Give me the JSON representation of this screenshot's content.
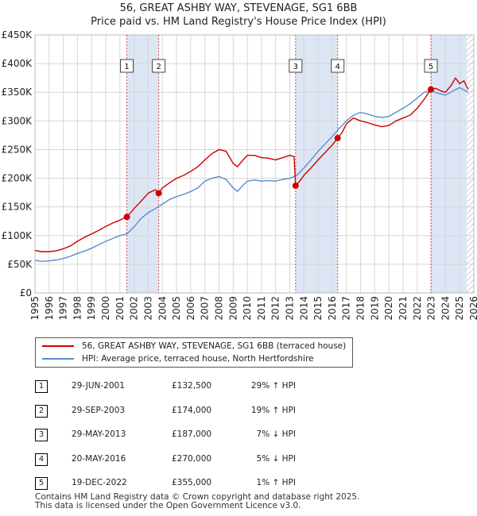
{
  "title_line1": "56, GREAT ASHBY WAY, STEVENAGE, SG1 6BB",
  "title_line2": "Price paid vs. HM Land Registry's House Price Index (HPI)",
  "colors": {
    "property": "#cc0000",
    "hpi": "#5b8ccc",
    "shade": "#dde6f5",
    "grid": "#d6d6d6",
    "marker_line": "#d44444"
  },
  "legend": {
    "property": "56, GREAT ASHBY WAY, STEVENAGE, SG1 6BB (terraced house)",
    "hpi": "HPI: Average price, terraced house, North Hertfordshire"
  },
  "transactions": [
    {
      "num": "1",
      "date": "29-JUN-2001",
      "price": "£132,500",
      "hpi": "29% ↑ HPI"
    },
    {
      "num": "2",
      "date": "29-SEP-2003",
      "price": "£174,000",
      "hpi": "19% ↑ HPI"
    },
    {
      "num": "3",
      "date": "29-MAY-2013",
      "price": "£187,000",
      "hpi": "7% ↓ HPI"
    },
    {
      "num": "4",
      "date": "20-MAY-2016",
      "price": "£270,000",
      "hpi": "5% ↓ HPI"
    },
    {
      "num": "5",
      "date": "19-DEC-2022",
      "price": "£355,000",
      "hpi": "1% ↑ HPI"
    }
  ],
  "footer_line1": "Contains HM Land Registry data © Crown copyright and database right 2025.",
  "footer_line2": "This data is licensed under the Open Government Licence v3.0.",
  "chart_data": {
    "type": "line",
    "title": "56, GREAT ASHBY WAY, STEVENAGE, SG1 6BB — Price paid vs. HM Land Registry's House Price Index (HPI)",
    "xlabel": "",
    "ylabel": "",
    "xlim": [
      1995,
      2026
    ],
    "ylim": [
      0,
      450000
    ],
    "x_ticks": [
      1995,
      1996,
      1997,
      1998,
      1999,
      2000,
      2001,
      2002,
      2003,
      2004,
      2005,
      2006,
      2007,
      2008,
      2009,
      2010,
      2011,
      2012,
      2013,
      2014,
      2015,
      2016,
      2017,
      2018,
      2019,
      2020,
      2021,
      2022,
      2023,
      2024,
      2025,
      2026
    ],
    "y_ticks": [
      {
        "value": 0,
        "label": "£0"
      },
      {
        "value": 50000,
        "label": "£50K"
      },
      {
        "value": 100000,
        "label": "£100K"
      },
      {
        "value": 150000,
        "label": "£150K"
      },
      {
        "value": 200000,
        "label": "£200K"
      },
      {
        "value": 250000,
        "label": "£250K"
      },
      {
        "value": 300000,
        "label": "£300K"
      },
      {
        "value": 350000,
        "label": "£350K"
      },
      {
        "value": 400000,
        "label": "£400K"
      },
      {
        "value": 450000,
        "label": "£450K"
      }
    ],
    "grid": true,
    "shaded_ranges": [
      [
        2001.49,
        2003.74
      ],
      [
        2013.41,
        2016.38
      ],
      [
        2022.97,
        2025.9
      ]
    ],
    "hatched_from": 2025.5,
    "sales": [
      {
        "label": "1",
        "x": 2001.49,
        "y": 132500
      },
      {
        "label": "2",
        "x": 2003.74,
        "y": 174000
      },
      {
        "label": "3",
        "x": 2013.41,
        "y": 187000
      },
      {
        "label": "4",
        "x": 2016.38,
        "y": 270000
      },
      {
        "label": "5",
        "x": 2022.97,
        "y": 355000
      }
    ],
    "series": [
      {
        "name": "56, GREAT ASHBY WAY, STEVENAGE, SG1 6BB (terraced house)",
        "points": [
          [
            1995.0,
            74000
          ],
          [
            1995.5,
            72000
          ],
          [
            1996.0,
            72000
          ],
          [
            1996.5,
            73500
          ],
          [
            1997.0,
            77000
          ],
          [
            1997.5,
            82000
          ],
          [
            1998.0,
            90000
          ],
          [
            1998.5,
            97000
          ],
          [
            1999.0,
            103000
          ],
          [
            1999.5,
            109000
          ],
          [
            2000.0,
            116000
          ],
          [
            2000.5,
            122000
          ],
          [
            2001.0,
            127000
          ],
          [
            2001.49,
            132500
          ],
          [
            2002.0,
            147000
          ],
          [
            2002.5,
            160000
          ],
          [
            2003.0,
            174000
          ],
          [
            2003.5,
            180000
          ],
          [
            2003.74,
            174000
          ],
          [
            2004.0,
            183000
          ],
          [
            2004.5,
            192000
          ],
          [
            2005.0,
            200000
          ],
          [
            2005.5,
            205000
          ],
          [
            2006.0,
            212000
          ],
          [
            2006.5,
            220000
          ],
          [
            2007.0,
            232000
          ],
          [
            2007.5,
            243000
          ],
          [
            2008.0,
            250000
          ],
          [
            2008.5,
            247000
          ],
          [
            2009.0,
            226000
          ],
          [
            2009.3,
            220000
          ],
          [
            2009.7,
            232000
          ],
          [
            2010.0,
            240000
          ],
          [
            2010.5,
            240000
          ],
          [
            2011.0,
            236000
          ],
          [
            2011.5,
            235000
          ],
          [
            2012.0,
            232000
          ],
          [
            2012.5,
            236000
          ],
          [
            2013.0,
            240000
          ],
          [
            2013.3,
            238000
          ],
          [
            2013.41,
            187000
          ],
          [
            2013.7,
            195000
          ],
          [
            2014.0,
            205000
          ],
          [
            2014.5,
            218000
          ],
          [
            2015.0,
            232000
          ],
          [
            2015.5,
            245000
          ],
          [
            2016.0,
            258000
          ],
          [
            2016.38,
            270000
          ],
          [
            2016.7,
            280000
          ],
          [
            2017.0,
            295000
          ],
          [
            2017.5,
            305000
          ],
          [
            2018.0,
            300000
          ],
          [
            2018.5,
            297000
          ],
          [
            2019.0,
            293000
          ],
          [
            2019.5,
            290000
          ],
          [
            2020.0,
            292000
          ],
          [
            2020.5,
            300000
          ],
          [
            2021.0,
            305000
          ],
          [
            2021.5,
            310000
          ],
          [
            2022.0,
            322000
          ],
          [
            2022.5,
            338000
          ],
          [
            2022.97,
            355000
          ],
          [
            2023.3,
            357000
          ],
          [
            2023.7,
            352000
          ],
          [
            2024.0,
            350000
          ],
          [
            2024.4,
            362000
          ],
          [
            2024.7,
            375000
          ],
          [
            2025.0,
            365000
          ],
          [
            2025.3,
            370000
          ],
          [
            2025.6,
            355000
          ]
        ]
      },
      {
        "name": "HPI: Average price, terraced house, North Hertfordshire",
        "points": [
          [
            1995.0,
            57000
          ],
          [
            1995.5,
            55000
          ],
          [
            1996.0,
            56000
          ],
          [
            1996.5,
            57500
          ],
          [
            1997.0,
            60000
          ],
          [
            1997.5,
            64000
          ],
          [
            1998.0,
            69000
          ],
          [
            1998.5,
            73000
          ],
          [
            1999.0,
            78000
          ],
          [
            1999.5,
            84000
          ],
          [
            2000.0,
            90000
          ],
          [
            2000.5,
            95000
          ],
          [
            2001.0,
            100000
          ],
          [
            2001.5,
            103000
          ],
          [
            2002.0,
            115000
          ],
          [
            2002.5,
            130000
          ],
          [
            2003.0,
            140000
          ],
          [
            2003.5,
            147000
          ],
          [
            2004.0,
            155000
          ],
          [
            2004.5,
            163000
          ],
          [
            2005.0,
            168000
          ],
          [
            2005.5,
            172000
          ],
          [
            2006.0,
            177000
          ],
          [
            2006.5,
            183000
          ],
          [
            2007.0,
            195000
          ],
          [
            2007.5,
            200000
          ],
          [
            2008.0,
            203000
          ],
          [
            2008.5,
            198000
          ],
          [
            2009.0,
            183000
          ],
          [
            2009.3,
            177000
          ],
          [
            2009.7,
            188000
          ],
          [
            2010.0,
            195000
          ],
          [
            2010.5,
            197000
          ],
          [
            2011.0,
            195000
          ],
          [
            2011.5,
            196000
          ],
          [
            2012.0,
            195000
          ],
          [
            2012.5,
            198000
          ],
          [
            2013.0,
            200000
          ],
          [
            2013.5,
            205000
          ],
          [
            2014.0,
            218000
          ],
          [
            2014.5,
            232000
          ],
          [
            2015.0,
            247000
          ],
          [
            2015.5,
            260000
          ],
          [
            2016.0,
            273000
          ],
          [
            2016.5,
            287000
          ],
          [
            2017.0,
            300000
          ],
          [
            2017.5,
            310000
          ],
          [
            2018.0,
            315000
          ],
          [
            2018.5,
            312000
          ],
          [
            2019.0,
            308000
          ],
          [
            2019.5,
            306000
          ],
          [
            2020.0,
            308000
          ],
          [
            2020.5,
            315000
          ],
          [
            2021.0,
            322000
          ],
          [
            2021.5,
            330000
          ],
          [
            2022.0,
            340000
          ],
          [
            2022.5,
            350000
          ],
          [
            2023.0,
            352000
          ],
          [
            2023.5,
            348000
          ],
          [
            2024.0,
            345000
          ],
          [
            2024.5,
            352000
          ],
          [
            2025.0,
            358000
          ],
          [
            2025.6,
            350000
          ]
        ]
      }
    ]
  }
}
